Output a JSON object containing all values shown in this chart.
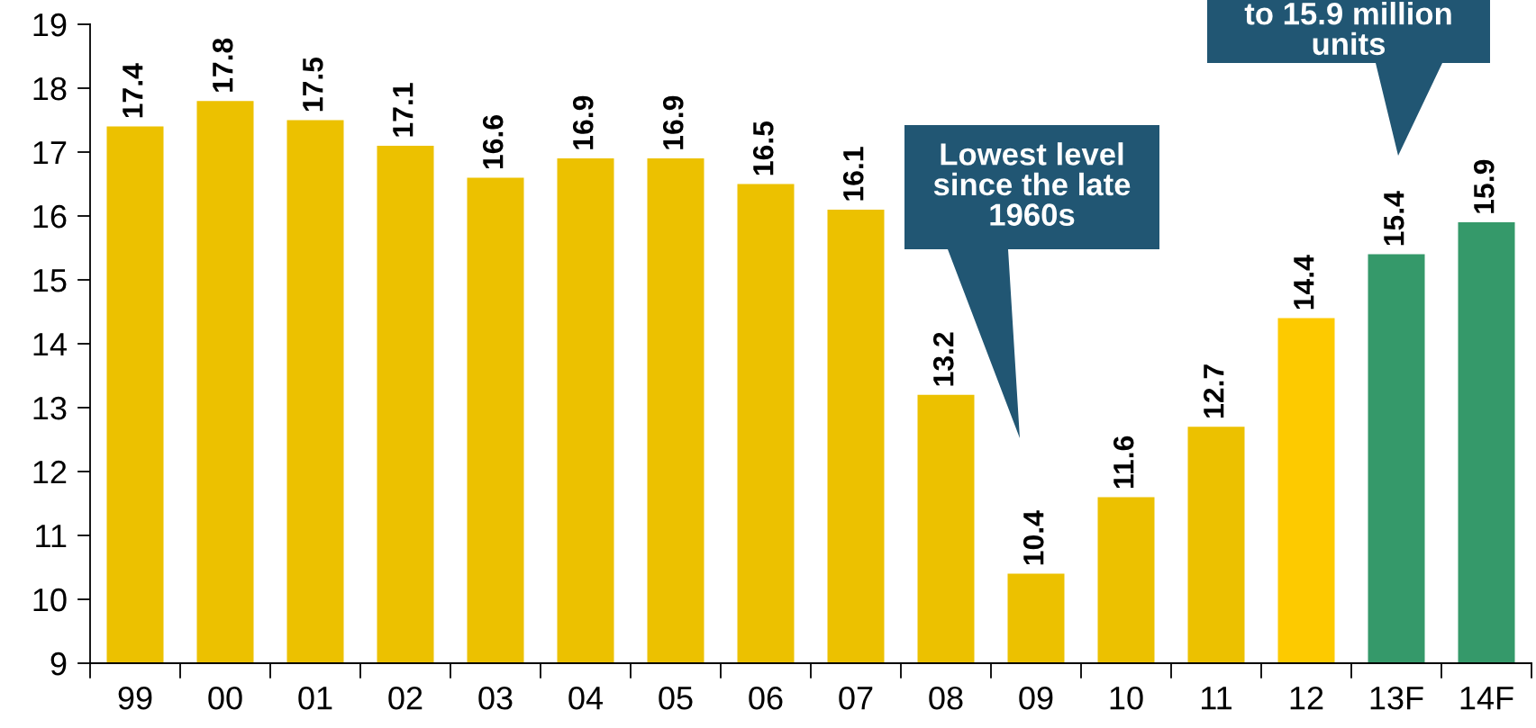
{
  "chart_data": {
    "type": "bar",
    "categories": [
      "99",
      "00",
      "01",
      "02",
      "03",
      "04",
      "05",
      "06",
      "07",
      "08",
      "09",
      "10",
      "11",
      "12",
      "13F",
      "14F"
    ],
    "values": [
      17.4,
      17.8,
      17.5,
      17.1,
      16.6,
      16.9,
      16.9,
      16.5,
      16.1,
      13.2,
      10.4,
      11.6,
      12.7,
      14.4,
      15.4,
      15.9
    ],
    "colors": [
      "#ecc100",
      "#ecc100",
      "#ecc100",
      "#ecc100",
      "#ecc100",
      "#ecc100",
      "#ecc100",
      "#ecc100",
      "#ecc100",
      "#ecc100",
      "#ecc100",
      "#ecc100",
      "#ecc100",
      "#fdca00",
      "#35996a",
      "#35996a"
    ],
    "ylim": [
      9,
      19
    ],
    "yticks": [
      9,
      10,
      11,
      12,
      13,
      14,
      15,
      16,
      17,
      18,
      19
    ],
    "grid": false,
    "data_labels": true,
    "annotations": [
      "Lowest level\nsince the late\n1960s",
      "to 15.9 million\nunits"
    ]
  }
}
